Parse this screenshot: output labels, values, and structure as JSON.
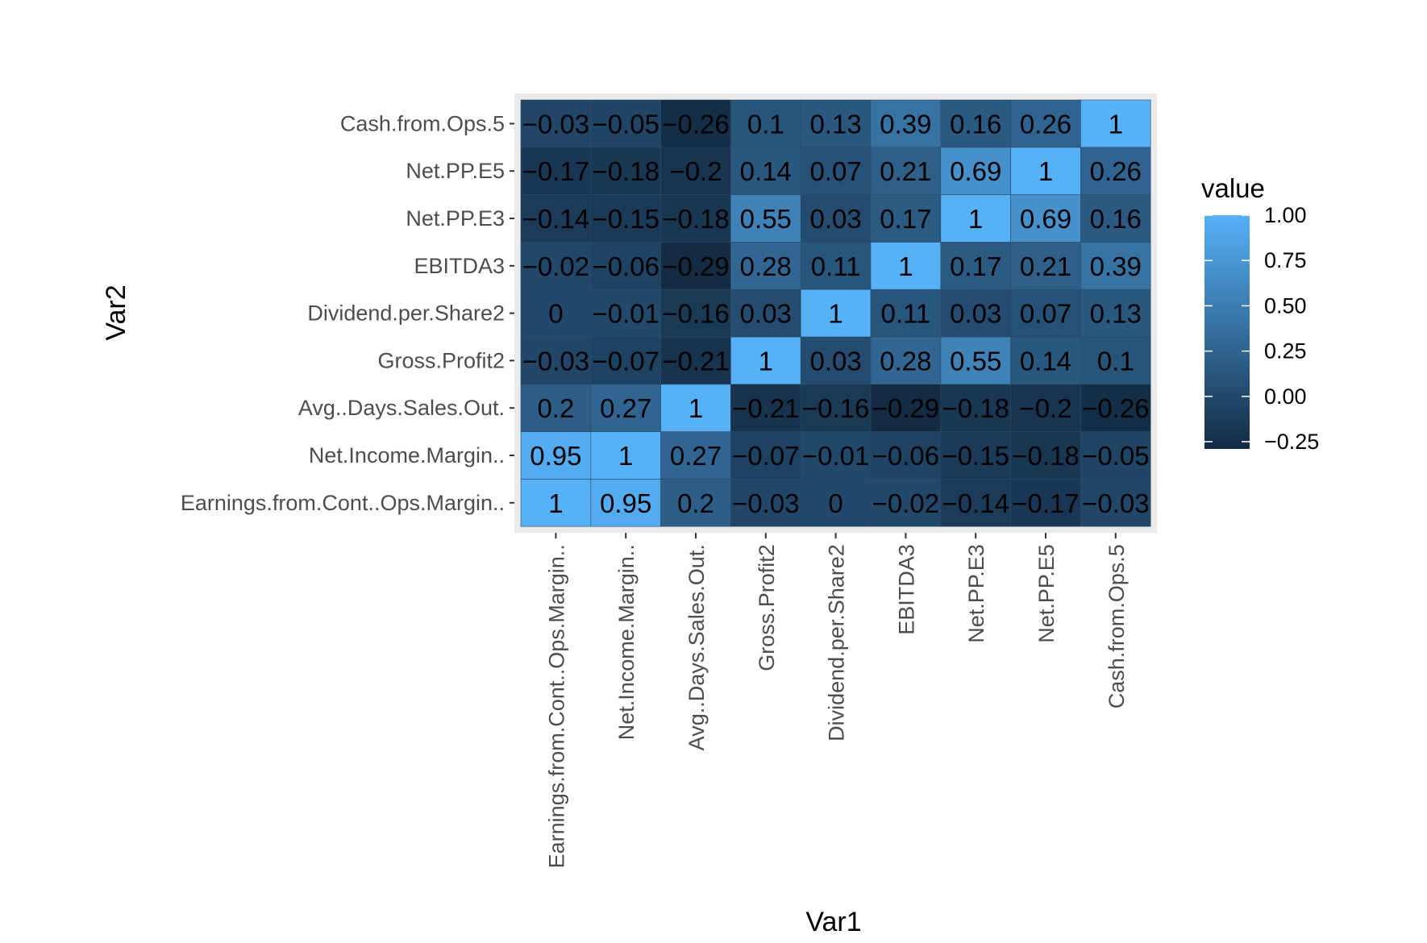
{
  "chart_data": {
    "type": "heatmap",
    "xlabel": "Var1",
    "ylabel": "Var2",
    "x_categories": [
      "Earnings.from.Cont..Ops.Margin..",
      "Net.Income.Margin..",
      "Avg..Days.Sales.Out.",
      "Gross.Profit2",
      "Dividend.per.Share2",
      "EBITDA3",
      "Net.PP.E3",
      "Net.PP.E5",
      "Cash.from.Ops.5"
    ],
    "y_categories": [
      "Earnings.from.Cont..Ops.Margin..",
      "Net.Income.Margin..",
      "Avg..Days.Sales.Out.",
      "Gross.Profit2",
      "Dividend.per.Share2",
      "EBITDA3",
      "Net.PP.E3",
      "Net.PP.E5",
      "Cash.from.Ops.5"
    ],
    "values": [
      [
        1,
        0.95,
        0.2,
        -0.03,
        0,
        -0.02,
        -0.14,
        -0.17,
        -0.03
      ],
      [
        0.95,
        1,
        0.27,
        -0.07,
        -0.01,
        -0.06,
        -0.15,
        -0.18,
        -0.05
      ],
      [
        0.2,
        0.27,
        1,
        -0.21,
        -0.16,
        -0.29,
        -0.18,
        -0.2,
        -0.26
      ],
      [
        -0.03,
        -0.07,
        -0.21,
        1,
        0.03,
        0.28,
        0.55,
        0.14,
        0.1
      ],
      [
        0,
        -0.01,
        -0.16,
        0.03,
        1,
        0.11,
        0.03,
        0.07,
        0.13
      ],
      [
        -0.02,
        -0.06,
        -0.29,
        0.28,
        0.11,
        1,
        0.17,
        0.21,
        0.39
      ],
      [
        -0.14,
        -0.15,
        -0.18,
        0.55,
        0.03,
        0.17,
        1,
        0.69,
        0.16
      ],
      [
        -0.17,
        -0.18,
        -0.2,
        0.14,
        0.07,
        0.21,
        0.69,
        1,
        0.26
      ],
      [
        -0.03,
        -0.05,
        -0.26,
        0.1,
        0.13,
        0.39,
        0.16,
        0.26,
        1
      ]
    ],
    "legend": {
      "title": "value",
      "ticks": [
        1.0,
        0.75,
        0.5,
        0.25,
        0.0,
        -0.25
      ],
      "tick_labels": [
        "1.00",
        "0.75",
        "0.50",
        "0.25",
        "0.00",
        "−0.25"
      ],
      "range": [
        -0.29,
        1.0
      ],
      "low_color": "#132b43",
      "high_color": "#56b1f7"
    },
    "panel_background": "#ebebeb"
  }
}
